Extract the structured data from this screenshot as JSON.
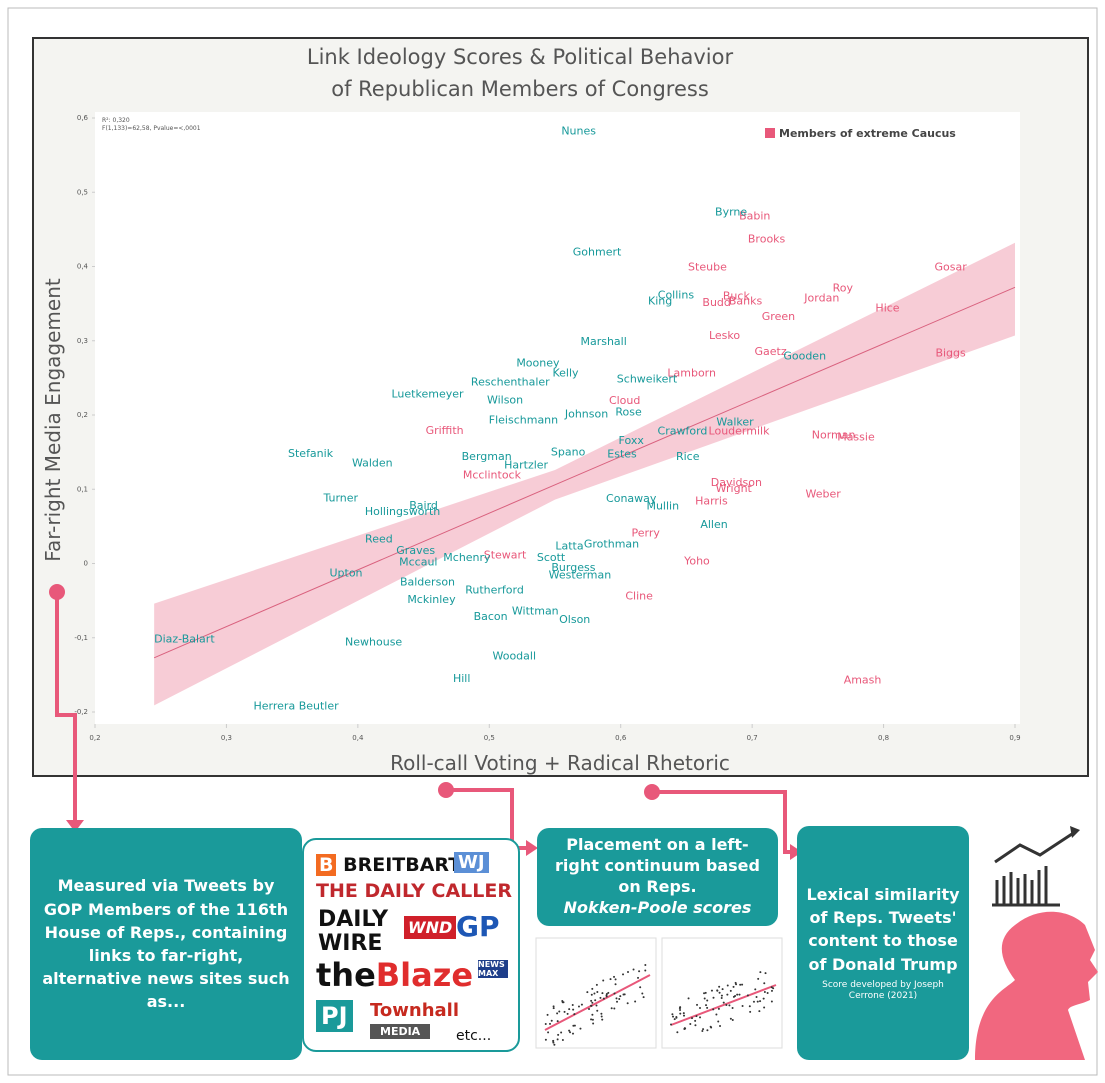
{
  "chart_data": {
    "type": "scatter",
    "title": "Link Ideology Scores & Political Behavior",
    "subtitle": "of Republican Members of Congress",
    "xlabel": "Roll-call Voting + Radical Rhetoric",
    "ylabel": "Far-right Media Engagement",
    "stats": [
      "R²: 0,320",
      "F(1,133)=62,58, Pvalue=<,0001"
    ],
    "legend": "top-right",
    "xlim": [
      0.2,
      0.9
    ],
    "ylim": [
      -0.2,
      0.6
    ],
    "xticks": [
      {
        "value": 0.2,
        "label": "0,2"
      },
      {
        "value": 0.3,
        "label": "0,3"
      },
      {
        "value": 0.4,
        "label": "0,4"
      },
      {
        "value": 0.5,
        "label": "0,5"
      },
      {
        "value": 0.6,
        "label": "0,6"
      },
      {
        "value": 0.7,
        "label": "0,7"
      },
      {
        "value": 0.8,
        "label": "0,8"
      },
      {
        "value": 0.9,
        "label": "0,9"
      }
    ],
    "yticks": [
      {
        "value": -0.2,
        "label": "-0,2"
      },
      {
        "value": -0.1,
        "label": "-0,1"
      },
      0,
      {
        "value": 0.1,
        "label": "0,1"
      },
      {
        "value": 0.2,
        "label": "0,2"
      },
      {
        "value": 0.3,
        "label": "0,3"
      },
      {
        "value": 0.4,
        "label": "0,4"
      },
      {
        "value": 0.5,
        "label": "0,5"
      },
      {
        "value": 0.6,
        "label": "0,6"
      }
    ],
    "fit": {
      "color": "#d9617e",
      "band_color": "#f6c3cf",
      "x": [
        0.245,
        0.55,
        0.9
      ],
      "y": [
        -0.127,
        0.106,
        0.372
      ],
      "lower": [
        -0.191,
        0.086,
        0.307
      ],
      "upper": [
        -0.054,
        0.126,
        0.432
      ]
    },
    "series": [
      {
        "name": "Members of extreme Caucus",
        "color": "#e8587a",
        "labels": [
          "Babin",
          "Brooks",
          "Steube",
          "Gosar",
          "Roy",
          "Buck",
          "Budd",
          "Banks",
          "Jordan",
          "Hice",
          "Green",
          "Lesko",
          "Gaetz",
          "Biggs",
          "Lamborn",
          "Cloud",
          "Griffith",
          "Loudermilk",
          "Norman",
          "Massie",
          "Mcclintock",
          "Davidson",
          "Wright",
          "Weber",
          "Harris",
          "Perry",
          "Yoho",
          "Stewart",
          "Cline",
          "Amash"
        ],
        "x": [
          0.702,
          0.711,
          0.666,
          0.851,
          0.769,
          0.688,
          0.673,
          0.695,
          0.753,
          0.803,
          0.72,
          0.679,
          0.714,
          0.851,
          0.654,
          0.603,
          0.466,
          0.69,
          0.762,
          0.779,
          0.502,
          0.688,
          0.686,
          0.754,
          0.669,
          0.619,
          0.658,
          0.512,
          0.614,
          0.784
        ],
        "values": [
          0.469,
          0.438,
          0.4,
          0.4,
          0.372,
          0.361,
          0.352,
          0.354,
          0.358,
          0.345,
          0.333,
          0.308,
          0.286,
          0.284,
          0.257,
          0.22,
          0.18,
          0.179,
          0.174,
          0.171,
          0.12,
          0.11,
          0.102,
          0.094,
          0.085,
          0.042,
          0.004,
          0.012,
          -0.043,
          -0.156
        ]
      },
      {
        "color": "#17999a",
        "labels": [
          "Nunes",
          "Byrne",
          "Gohmert",
          "Collins",
          "King",
          "Marshall",
          "Gooden",
          "Mooney",
          "Kelly",
          "Reschenthaler",
          "Luetkemeyer",
          "Wilson",
          "Schweikert",
          "Fleischmann",
          "Johnson",
          "Rose",
          "Walker",
          "Stefanik",
          "Walden",
          "Bergman",
          "Spano",
          "Estes",
          "Foxx",
          "Crawford",
          "Rice",
          "Hartzler",
          "Turner",
          "Mullin",
          "Conaway",
          "Hollingsworth",
          "Allen",
          "Baird",
          "Mchenry",
          "Reed",
          "Graves",
          "Mccaul",
          "Latta",
          "Grothman",
          "Scott",
          "Upton",
          "Balderson",
          "Rutherford",
          "Mckinley",
          "Burgess",
          "Westerman",
          "Bacon",
          "Wittman",
          "Olson",
          "Diaz-Balart",
          "Newhouse",
          "Woodall",
          "Hill",
          "Herrera Beutler"
        ],
        "x": [
          0.568,
          0.684,
          0.582,
          0.642,
          0.63,
          0.587,
          0.74,
          0.537,
          0.558,
          0.516,
          0.453,
          0.512,
          0.62,
          0.526,
          0.574,
          0.606,
          0.687,
          0.364,
          0.411,
          0.498,
          0.56,
          0.601,
          0.608,
          0.647,
          0.651,
          0.528,
          0.387,
          0.632,
          0.608,
          0.434,
          0.671,
          0.45,
          0.483,
          0.416,
          0.444,
          0.446,
          0.561,
          0.593,
          0.547,
          0.391,
          0.453,
          0.504,
          0.456,
          0.564,
          0.569,
          0.501,
          0.535,
          0.565,
          0.268,
          0.412,
          0.519,
          0.479,
          0.353
        ],
        "values": [
          0.583,
          0.474,
          0.42,
          0.362,
          0.354,
          0.3,
          0.28,
          0.271,
          0.257,
          0.245,
          0.229,
          0.221,
          0.249,
          0.194,
          0.202,
          0.205,
          0.191,
          0.149,
          0.136,
          0.145,
          0.151,
          0.148,
          0.166,
          0.179,
          0.145,
          0.133,
          0.089,
          0.078,
          0.088,
          0.071,
          0.053,
          0.079,
          0.009,
          0.034,
          0.018,
          0.003,
          0.024,
          0.027,
          0.009,
          -0.012,
          -0.024,
          -0.035,
          -0.048,
          -0.005,
          -0.015,
          -0.071,
          -0.063,
          -0.075,
          -0.101,
          -0.105,
          -0.124,
          -0.154,
          -0.191
        ]
      }
    ]
  },
  "notes": {
    "measured": "Measured via Tweets by GOP Members of the 116th House of Reps., containing links to far-right, alternative news sites such as...",
    "outlets": [
      "BREITBART",
      "WJ",
      "THE DAILY CALLER",
      "DAILY",
      "WIRE",
      "WND",
      "GP",
      "the",
      "Blaze",
      "NEWS MAX",
      "PJ",
      "Townhall",
      "MEDIA",
      "etc..."
    ],
    "placement": "Placement on a left-right continuum based on Reps.",
    "placement_italic": "Nokken-Poole scores",
    "lexical": "Lexical similarity of Reps. Tweets' content to those of Donald Trump",
    "lexical_credit": "Score developed by Joseph Cerrone (2021)"
  }
}
